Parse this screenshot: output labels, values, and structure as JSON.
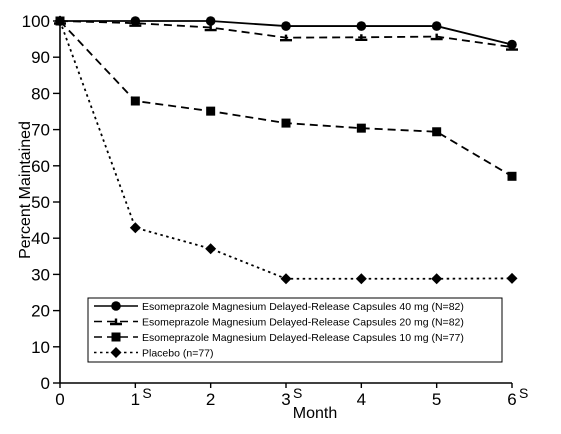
{
  "chart_data": {
    "type": "line",
    "xlabel": "Month",
    "ylabel": "Percent Maintained",
    "xlim": [
      0,
      6
    ],
    "ylim": [
      0,
      100
    ],
    "x_ticks": [
      "0",
      "1",
      "2",
      "3",
      "4",
      "5",
      "6"
    ],
    "x_tick_superscripts": [
      "",
      "S",
      "",
      "S",
      "",
      "",
      "S"
    ],
    "y_ticks": [
      "0",
      "10",
      "20",
      "30",
      "40",
      "50",
      "60",
      "70",
      "80",
      "90",
      "100"
    ],
    "grid": false,
    "legend_position": "bottom",
    "x": [
      0,
      1,
      2,
      3,
      4,
      5,
      6
    ],
    "series": [
      {
        "name": "Esomeprazole Magnesium Delayed-Release Capsules 40 mg (N=82)",
        "marker": "circle",
        "line": "solid",
        "values": [
          100,
          100,
          100,
          98.6,
          98.6,
          98.6,
          93.5
        ]
      },
      {
        "name": "Esomeprazole Magnesium Delayed-Release Capsules 20 mg (N=82)",
        "marker": "tbar",
        "line": "dashed",
        "values": [
          100,
          99.4,
          98.2,
          95.4,
          95.5,
          95.7,
          92.8
        ]
      },
      {
        "name": "Esomeprazole Magnesium Delayed-Release Capsules 10 mg (N=77)",
        "marker": "square",
        "line": "dashed",
        "values": [
          100,
          77.9,
          75.1,
          71.8,
          70.4,
          69.4,
          57.1
        ]
      },
      {
        "name": "Placebo (n=77)",
        "marker": "diamond",
        "line": "dotted",
        "values": [
          100,
          42.9,
          37.1,
          28.8,
          28.8,
          28.8,
          28.9
        ]
      }
    ]
  }
}
